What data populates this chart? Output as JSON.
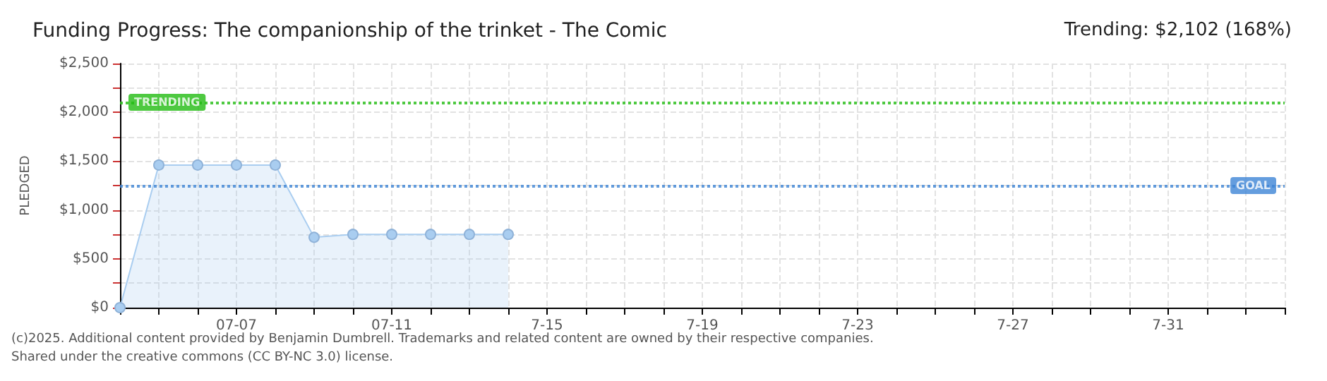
{
  "chart_data": {
    "type": "area",
    "title": "Funding Progress: The companionship of the trinket - The Comic",
    "subtitle": "Trending: $2,102 (168%)",
    "ylabel": "PLEDGED",
    "annotations": [
      "(c)2025. Additional content provided by Benjamin Dumbrell. Trademarks and related content are owned by their respective companies.",
      "Shared under the creative commons (CC BY-NC 3.0) license."
    ],
    "x": [
      "--07-04",
      "--07-05",
      "--07-06",
      "--07-07",
      "--07-08",
      "--07-09",
      "--07-10",
      "--07-11",
      "--07-12",
      "--07-13",
      "--07-14"
    ],
    "series": [
      {
        "color": "#a9cdf0",
        "values": [
          0,
          1460,
          1460,
          1460,
          1460,
          720,
          750,
          750,
          750,
          750,
          750
        ]
      }
    ],
    "xlim": [
      "--07-04",
      "--08-03"
    ],
    "xticks": [
      {
        "value": "--07-04",
        "label": null
      },
      {
        "value": "--07-05",
        "label": null
      },
      {
        "value": "--07-06",
        "label": null
      },
      {
        "value": "--07-07",
        "label": "07-07"
      },
      {
        "value": "--07-08",
        "label": null
      },
      {
        "value": "--07-09",
        "label": null
      },
      {
        "value": "--07-10",
        "label": null
      },
      {
        "value": "--07-11",
        "label": "07-11"
      },
      {
        "value": "--07-12",
        "label": null
      },
      {
        "value": "--07-13",
        "label": null
      },
      {
        "value": "--07-14",
        "label": null
      },
      {
        "value": "--07-15",
        "label": "7-15"
      },
      {
        "value": "--07-16",
        "label": null
      },
      {
        "value": "--07-17",
        "label": null
      },
      {
        "value": "--07-18",
        "label": null
      },
      {
        "value": "--07-19",
        "label": "7-19"
      },
      {
        "value": "--07-20",
        "label": null
      },
      {
        "value": "--07-21",
        "label": null
      },
      {
        "value": "--07-22",
        "label": null
      },
      {
        "value": "--07-23",
        "label": "7-23"
      },
      {
        "value": "--07-24",
        "label": null
      },
      {
        "value": "--07-25",
        "label": null
      },
      {
        "value": "--07-26",
        "label": null
      },
      {
        "value": "--07-27",
        "label": "7-27"
      },
      {
        "value": "--07-28",
        "label": null
      },
      {
        "value": "--07-29",
        "label": null
      },
      {
        "value": "--07-30",
        "label": null
      },
      {
        "value": "--07-31",
        "label": "7-31"
      },
      {
        "value": "--08-01",
        "label": null
      },
      {
        "value": "--08-02",
        "label": null
      },
      {
        "value": "--08-03",
        "label": null
      }
    ],
    "ylim": [
      0,
      2500
    ],
    "yticks": [
      {
        "value": 0,
        "label": "$0"
      },
      {
        "value": 250,
        "label": null
      },
      {
        "value": 500,
        "label": "$500"
      },
      {
        "value": 750,
        "label": null
      },
      {
        "value": 1000,
        "label": "$1,000"
      },
      {
        "value": 1250,
        "label": null
      },
      {
        "value": 1500,
        "label": "$1,500"
      },
      {
        "value": 1750,
        "label": null
      },
      {
        "value": 2000,
        "label": "$2,000"
      },
      {
        "value": 2250,
        "label": null
      },
      {
        "value": 2500,
        "label": "$2,500"
      }
    ],
    "ref_lines": [
      {
        "axis": "y",
        "value": 2102,
        "label": "TRENDING",
        "color": "#22bb11",
        "line_style": "dotted"
      },
      {
        "axis": "y",
        "value": 1250,
        "label": "GOAL",
        "color": "#3d85d6",
        "line_style": "dotted"
      }
    ],
    "grid": true,
    "marker": "circle"
  }
}
